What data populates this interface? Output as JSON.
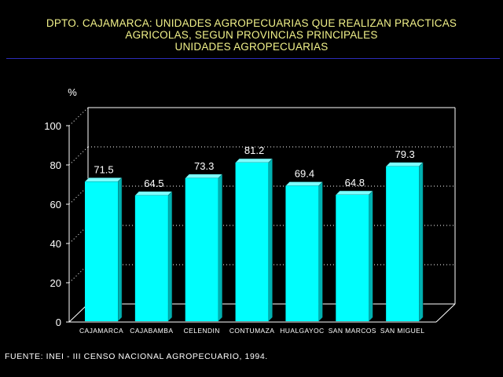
{
  "title": {
    "line1": "DPTO. CAJAMARCA: UNIDADES AGROPECUARIAS QUE REALIZAN PRACTICAS",
    "line2": "AGRICOLAS, SEGUN PROVINCIAS PRINCIPALES",
    "line3": "UNIDADES AGROPECUARIAS"
  },
  "source": "FUENTE: INEI - III CENSO NACIONAL AGROPECUARIO, 1994.",
  "colors": {
    "background": "#000000",
    "title_text": "#f2f28a",
    "title_rule": "#2c2cb8",
    "bar_front": "#00ffff",
    "bar_side": "#00b0b0",
    "bar_top": "#7fffff",
    "axes": "#ffffff",
    "text": "#ffffff"
  },
  "chart_data": {
    "type": "bar",
    "ylabel": "%",
    "xlabel": "",
    "ylim": [
      0,
      100
    ],
    "yticks": [
      0,
      20,
      40,
      60,
      80,
      100
    ],
    "grid": true,
    "categories": [
      "CAJAMARCA",
      "CAJABAMBA",
      "CELENDIN",
      "CONTUMAZA",
      "HUALGAYOC",
      "SAN MARCOS",
      "SAN MIGUEL"
    ],
    "values": [
      71.5,
      64.5,
      73.3,
      81.2,
      69.4,
      64.8,
      79.3
    ],
    "value_labels": [
      "71.5",
      "64.5",
      "73.3",
      "81.2",
      "69.4",
      "64.8",
      "79.3"
    ]
  }
}
